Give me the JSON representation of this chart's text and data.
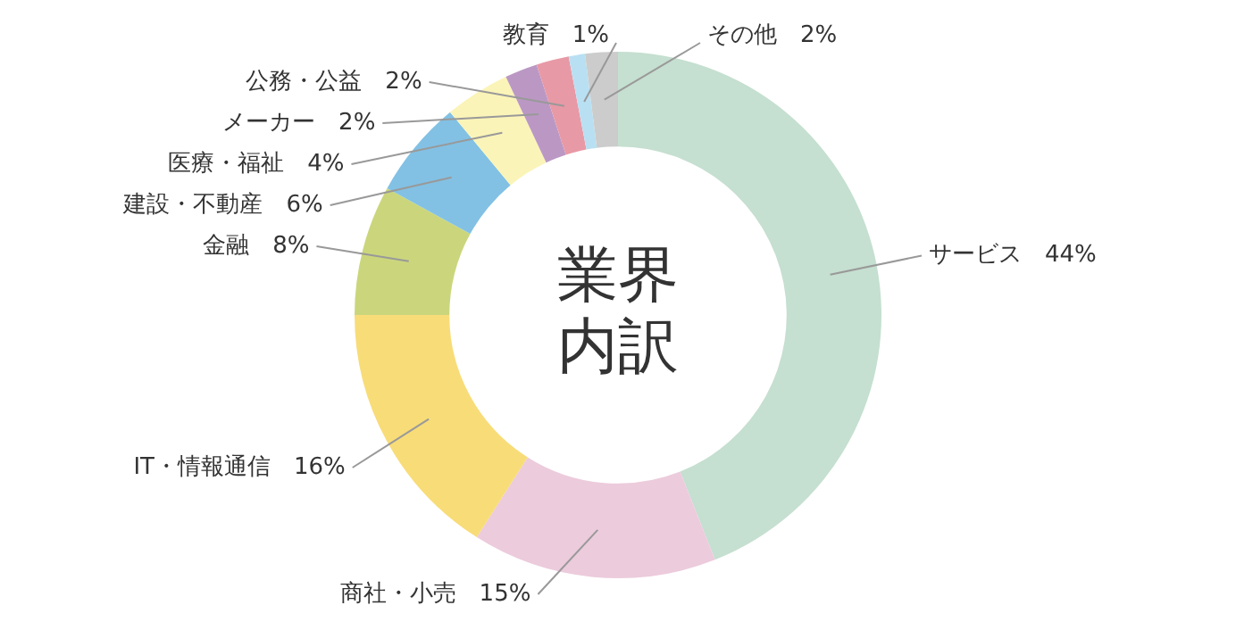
{
  "chart_data": {
    "type": "donut",
    "title": "業界内訳",
    "categories": [
      "サービス",
      "商社・小売",
      "IT・情報通信",
      "金融",
      "建設・不動産",
      "医療・福祉",
      "メーカー",
      "公務・公益",
      "教育",
      "その他"
    ],
    "values": [
      44,
      15,
      16,
      8,
      6,
      4,
      2,
      2,
      1,
      2
    ],
    "value_labels": [
      "44%",
      "15%",
      "16%",
      "8%",
      "6%",
      "4%",
      "2%",
      "2%",
      "1%",
      "2%"
    ],
    "colors": [
      "#c5dfd0",
      "#eccbdc",
      "#f8dc78",
      "#cbd67c",
      "#82c1e4",
      "#fbf4b8",
      "#bb98c4",
      "#e899a6",
      "#b9e0f2",
      "#cccccc"
    ],
    "legend": false
  }
}
